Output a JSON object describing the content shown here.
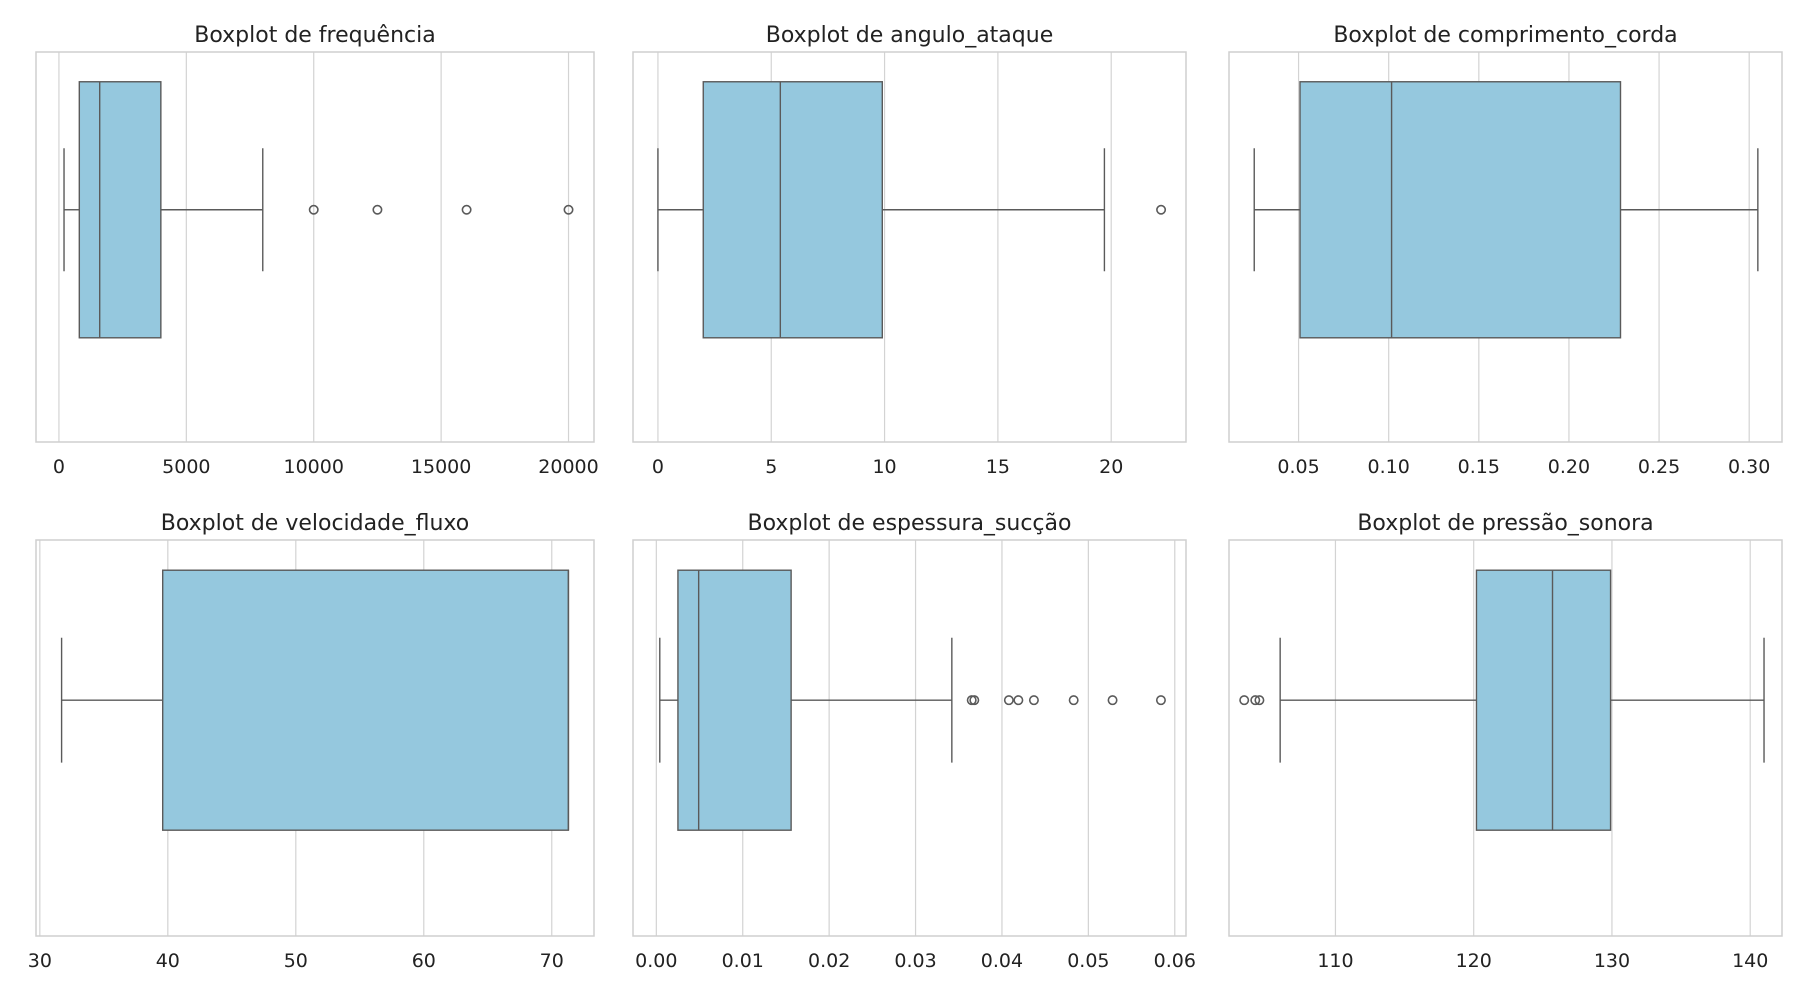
{
  "colors": {
    "box_fill": "#95c8de",
    "line": "#5a5a5a",
    "grid": "#d3d3d3",
    "frame": "#cfcfcf",
    "outlier": "#5a5a5a"
  },
  "chart_data": [
    {
      "type": "boxplot",
      "title": "Boxplot de frequência",
      "xlabel": "",
      "ylabel": "",
      "xlim": [
        -900,
        21000
      ],
      "ticks": [
        0,
        5000,
        10000,
        15000,
        20000
      ],
      "tick_labels": [
        "0",
        "5000",
        "10000",
        "15000",
        "20000"
      ],
      "grid": true,
      "stats": {
        "whisker_low": 200,
        "q1": 800,
        "median": 1600,
        "q3": 4000,
        "whisker_high": 8000
      },
      "outliers": [
        10000,
        12500,
        16000,
        20000
      ]
    },
    {
      "type": "boxplot",
      "title": "Boxplot de angulo_ataque",
      "xlabel": "",
      "ylabel": "",
      "xlim": [
        -1.1,
        23.3
      ],
      "ticks": [
        0,
        5,
        10,
        15,
        20
      ],
      "tick_labels": [
        "0",
        "5",
        "10",
        "15",
        "20"
      ],
      "grid": true,
      "stats": {
        "whisker_low": 0,
        "q1": 2.0,
        "median": 5.4,
        "q3": 9.9,
        "whisker_high": 19.7
      },
      "outliers": [
        22.2
      ]
    },
    {
      "type": "boxplot",
      "title": "Boxplot de comprimento_corda",
      "xlabel": "",
      "ylabel": "",
      "xlim": [
        0.0114,
        0.3182
      ],
      "ticks": [
        0.05,
        0.1,
        0.15,
        0.2,
        0.25,
        0.3
      ],
      "tick_labels": [
        "0.05",
        "0.10",
        "0.15",
        "0.20",
        "0.25",
        "0.30"
      ],
      "grid": true,
      "stats": {
        "whisker_low": 0.0254,
        "q1": 0.0508,
        "median": 0.1016,
        "q3": 0.2286,
        "whisker_high": 0.3048
      },
      "outliers": []
    },
    {
      "type": "boxplot",
      "title": "Boxplot de velocidade_fluxo",
      "xlabel": "",
      "ylabel": "",
      "xlim": [
        29.7,
        73.3
      ],
      "ticks": [
        30,
        40,
        50,
        60,
        70
      ],
      "tick_labels": [
        "30",
        "40",
        "50",
        "60",
        "70"
      ],
      "grid": true,
      "stats": {
        "whisker_low": 31.7,
        "q1": 39.6,
        "median": 71.3,
        "q3": 71.3,
        "whisker_high": 71.3
      },
      "outliers": []
    },
    {
      "type": "boxplot",
      "title": "Boxplot de espessura_sucção",
      "xlabel": "",
      "ylabel": "",
      "xlim": [
        -0.0027,
        0.0613
      ],
      "ticks": [
        0.0,
        0.01,
        0.02,
        0.03,
        0.04,
        0.05,
        0.06
      ],
      "tick_labels": [
        "0.00",
        "0.01",
        "0.02",
        "0.03",
        "0.04",
        "0.05",
        "0.06"
      ],
      "grid": true,
      "stats": {
        "whisker_low": 0.0004,
        "q1": 0.0025,
        "median": 0.0049,
        "q3": 0.0156,
        "whisker_high": 0.0342
      },
      "outliers": [
        0.0365,
        0.0368,
        0.0408,
        0.0419,
        0.0437,
        0.0483,
        0.0528,
        0.0584
      ]
    },
    {
      "type": "boxplot",
      "title": "Boxplot de pressão_sonora",
      "xlabel": "",
      "ylabel": "",
      "xlim": [
        102.3,
        142.3
      ],
      "ticks": [
        110,
        120,
        130,
        140
      ],
      "tick_labels": [
        "110",
        "120",
        "130",
        "140"
      ],
      "grid": true,
      "stats": {
        "whisker_low": 106.0,
        "q1": 120.2,
        "median": 125.7,
        "q3": 129.9,
        "whisker_high": 141.0
      },
      "outliers": [
        103.4,
        104.2,
        104.5
      ]
    }
  ]
}
